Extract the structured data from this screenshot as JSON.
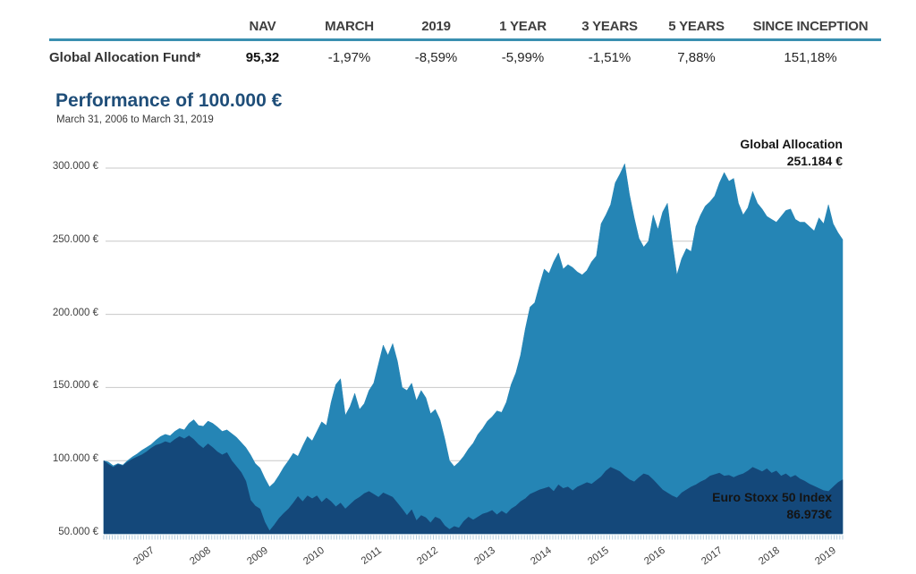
{
  "table": {
    "columns": [
      "NAV",
      "MARCH",
      "2019",
      "1 YEAR",
      "3 YEARS",
      "5 YEARS",
      "SINCE INCEPTION"
    ],
    "rows": [
      {
        "label": "Global Allocation Fund*",
        "values": [
          "95,32",
          "-1,97%",
          "-8,59%",
          "-5,99%",
          "-1,51%",
          "7,88%",
          "151,18%"
        ]
      }
    ]
  },
  "colors": {
    "title_blue": "#1f4e79",
    "table_rule": "#3a8fb0",
    "global_allocation_area": "#2585b5",
    "euro_stoxx_area": "#14487a",
    "gridline": "#c8c8c8",
    "tick_fringe": "#b5cede"
  },
  "chart_data": {
    "type": "area",
    "title": "Performance of 100.000 €",
    "subtitle": "March 31, 2006 to March 31, 2019",
    "x_unit": "year",
    "x_start": 2006.25,
    "x_end": 2019.25,
    "frequency": "monthly",
    "ylim": [
      50000,
      300000
    ],
    "grid": "horizontal",
    "y_ticks": [
      "300.000 €",
      "250.000 €",
      "200.000 €",
      "150.000 €",
      "100.000 €",
      "50.000 €"
    ],
    "x_tick_labels": [
      "2007",
      "2008",
      "2009",
      "2010",
      "2011",
      "2012",
      "2013",
      "2014",
      "2015",
      "2016",
      "2017",
      "2018",
      "2019"
    ],
    "series": [
      {
        "name": "Global Allocation",
        "end_value_label": "251.184 €",
        "end_value": 251184,
        "color": "#2585b5",
        "values": [
          100000,
          99000,
          96500,
          98000,
          97000,
          100000,
          102500,
          104500,
          107000,
          109000,
          111000,
          114000,
          116500,
          118000,
          117000,
          120000,
          122000,
          121000,
          125500,
          128000,
          124000,
          123500,
          127000,
          125500,
          123000,
          120000,
          121000,
          118500,
          116000,
          112500,
          109000,
          104000,
          98000,
          95000,
          88000,
          82000,
          85000,
          90000,
          95500,
          100000,
          105000,
          103000,
          110000,
          116500,
          113500,
          120000,
          126500,
          124000,
          140000,
          152000,
          156000,
          131000,
          137000,
          146000,
          135000,
          139000,
          148000,
          153000,
          166000,
          179000,
          172000,
          180000,
          168000,
          150000,
          148000,
          153000,
          141000,
          148000,
          143000,
          132000,
          135000,
          128000,
          115000,
          100000,
          96000,
          99000,
          103000,
          108000,
          112000,
          118000,
          122000,
          127000,
          130000,
          134000,
          133000,
          140000,
          152000,
          160000,
          172000,
          190000,
          205000,
          208000,
          220000,
          231000,
          228000,
          236000,
          242000,
          231000,
          234000,
          232000,
          229000,
          227000,
          230000,
          236000,
          240000,
          262000,
          268000,
          275000,
          290000,
          296000,
          303000,
          282000,
          266000,
          252000,
          246000,
          250000,
          268000,
          258000,
          270000,
          276000,
          250000,
          227000,
          238000,
          245000,
          243000,
          260000,
          268000,
          274000,
          277000,
          281000,
          290000,
          297000,
          291000,
          293000,
          276000,
          268000,
          273000,
          284000,
          276000,
          272000,
          267000,
          265000,
          263000,
          267000,
          271000,
          272000,
          265000,
          263000,
          263000,
          260000,
          257000,
          266000,
          262000,
          275000,
          262000,
          256000,
          251184
        ]
      },
      {
        "name": "Euro Stoxx 50 Index",
        "end_value_label": "86.973€",
        "end_value": 86973,
        "color": "#14487a",
        "values": [
          100000,
          97500,
          95500,
          97500,
          96500,
          99000,
          101000,
          102500,
          104000,
          106000,
          108500,
          110500,
          111500,
          113000,
          112000,
          114500,
          116500,
          115000,
          117000,
          114500,
          111000,
          108500,
          111500,
          109000,
          106000,
          104000,
          105500,
          100000,
          96000,
          92000,
          86000,
          73000,
          69000,
          67000,
          58000,
          52000,
          56000,
          60500,
          64000,
          67000,
          71000,
          75500,
          72000,
          76000,
          74000,
          76000,
          71500,
          74500,
          72000,
          68500,
          71000,
          67000,
          70000,
          73000,
          75000,
          77500,
          79000,
          77000,
          75000,
          78000,
          76500,
          75000,
          71000,
          67000,
          62500,
          66500,
          59000,
          62500,
          61000,
          57500,
          61500,
          60000,
          55500,
          53000,
          55000,
          54000,
          58500,
          61500,
          59500,
          61500,
          63500,
          64500,
          66000,
          63000,
          65500,
          63500,
          67000,
          69000,
          72000,
          74000,
          77000,
          78500,
          80000,
          81000,
          82000,
          79000,
          83500,
          81000,
          82000,
          79500,
          82000,
          83500,
          85000,
          84000,
          86500,
          89000,
          93000,
          95500,
          94000,
          92500,
          89500,
          87000,
          85500,
          88500,
          91000,
          90000,
          87000,
          83500,
          80000,
          78000,
          76000,
          74500,
          78000,
          80000,
          82000,
          83500,
          85500,
          87000,
          89500,
          90500,
          91500,
          89500,
          90000,
          88500,
          90000,
          91000,
          93000,
          95500,
          94000,
          92500,
          94500,
          91500,
          93000,
          89500,
          91000,
          88500,
          90000,
          87500,
          86000,
          84000,
          82500,
          81000,
          79500,
          79000,
          82000,
          85000,
          86973
        ]
      }
    ]
  }
}
